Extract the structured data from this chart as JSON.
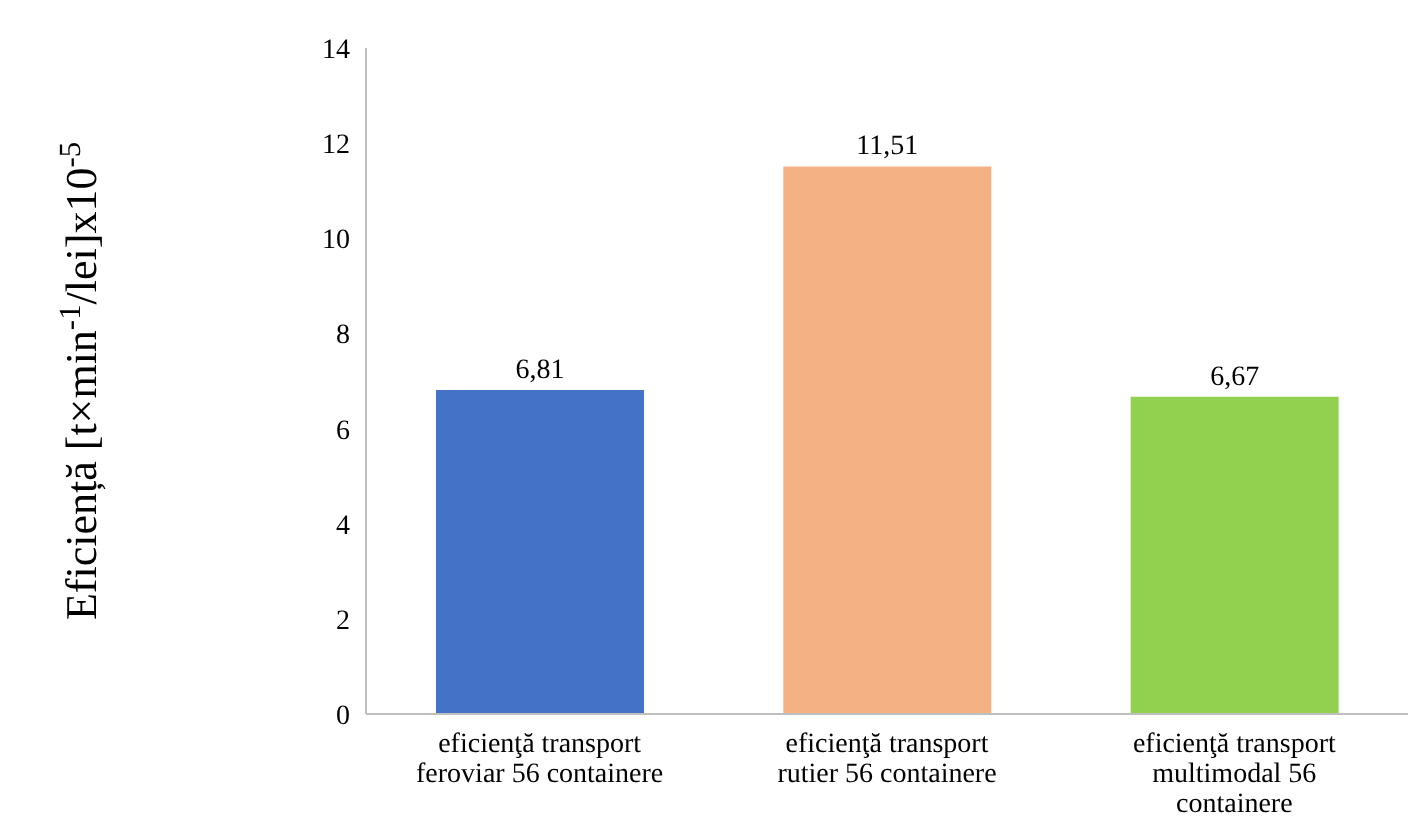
{
  "chart_data": {
    "type": "bar",
    "ylabel": "Eficiență [t×min$^{-1}$/lei]x10$^{-5}$",
    "categories": [
      "eficienţă transport feroviar 56 containere",
      "eficienţă transport rutier 56 containere",
      "eficienţă transport multimodal 56 containere"
    ],
    "values": [
      6.81,
      11.51,
      6.67
    ],
    "colors": [
      "#4472c4",
      "#f4b183",
      "#92d050"
    ],
    "value_labels": [
      "6,81",
      "11,51",
      "6,67"
    ],
    "ylim": [
      0,
      14
    ],
    "yticks": [
      0,
      2,
      4,
      6,
      8,
      10,
      12,
      14
    ],
    "grid": false,
    "legend": false
  }
}
